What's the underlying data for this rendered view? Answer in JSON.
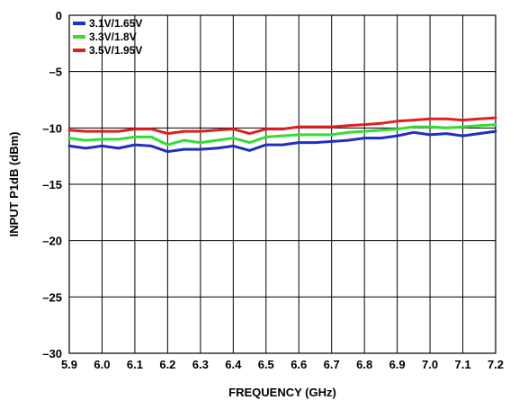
{
  "chart_data": {
    "type": "line",
    "title": "",
    "xlabel": "FREQUENCY (GHz)",
    "ylabel": "INPUT P1dB (dBm)",
    "xlim": [
      5.9,
      7.2
    ],
    "ylim": [
      -30,
      0
    ],
    "xticks": [
      "5.9",
      "6.0",
      "6.1",
      "6.2",
      "6.3",
      "6.4",
      "6.5",
      "6.6",
      "6.7",
      "6.8",
      "6.9",
      "7.0",
      "7.1",
      "7.2"
    ],
    "yticks": [
      "0",
      "–5",
      "–10",
      "–15",
      "–20",
      "–25",
      "–30"
    ],
    "grid": true,
    "legend_position": "top-left",
    "x": [
      5.9,
      5.95,
      6.0,
      6.05,
      6.1,
      6.15,
      6.2,
      6.25,
      6.3,
      6.35,
      6.4,
      6.45,
      6.5,
      6.55,
      6.6,
      6.65,
      6.7,
      6.75,
      6.8,
      6.85,
      6.9,
      6.95,
      7.0,
      7.05,
      7.1,
      7.15,
      7.2
    ],
    "series": [
      {
        "name": "3.1V/1.65V",
        "color": "#1f2fbf",
        "values": [
          -11.6,
          -11.8,
          -11.6,
          -11.8,
          -11.5,
          -11.6,
          -12.1,
          -11.9,
          -11.9,
          -11.8,
          -11.6,
          -12.0,
          -11.5,
          -11.5,
          -11.3,
          -11.3,
          -11.2,
          -11.1,
          -10.9,
          -10.9,
          -10.7,
          -10.4,
          -10.6,
          -10.5,
          -10.7,
          -10.5,
          -10.3
        ]
      },
      {
        "name": "3.3V/1.8V",
        "color": "#33dd33",
        "values": [
          -10.9,
          -11.1,
          -11.0,
          -11.0,
          -10.8,
          -10.8,
          -11.5,
          -11.1,
          -11.3,
          -11.1,
          -10.9,
          -11.3,
          -10.8,
          -10.7,
          -10.6,
          -10.6,
          -10.6,
          -10.4,
          -10.3,
          -10.2,
          -10.1,
          -9.9,
          -9.9,
          -10.0,
          -9.9,
          -9.8,
          -9.7
        ]
      },
      {
        "name": "3.5V/1.95V",
        "color": "#e01f1f",
        "values": [
          -10.2,
          -10.3,
          -10.3,
          -10.3,
          -10.1,
          -10.1,
          -10.5,
          -10.3,
          -10.3,
          -10.2,
          -10.1,
          -10.5,
          -10.1,
          -10.1,
          -9.9,
          -9.9,
          -9.9,
          -9.8,
          -9.7,
          -9.6,
          -9.4,
          -9.3,
          -9.2,
          -9.2,
          -9.3,
          -9.2,
          -9.1
        ]
      }
    ]
  }
}
